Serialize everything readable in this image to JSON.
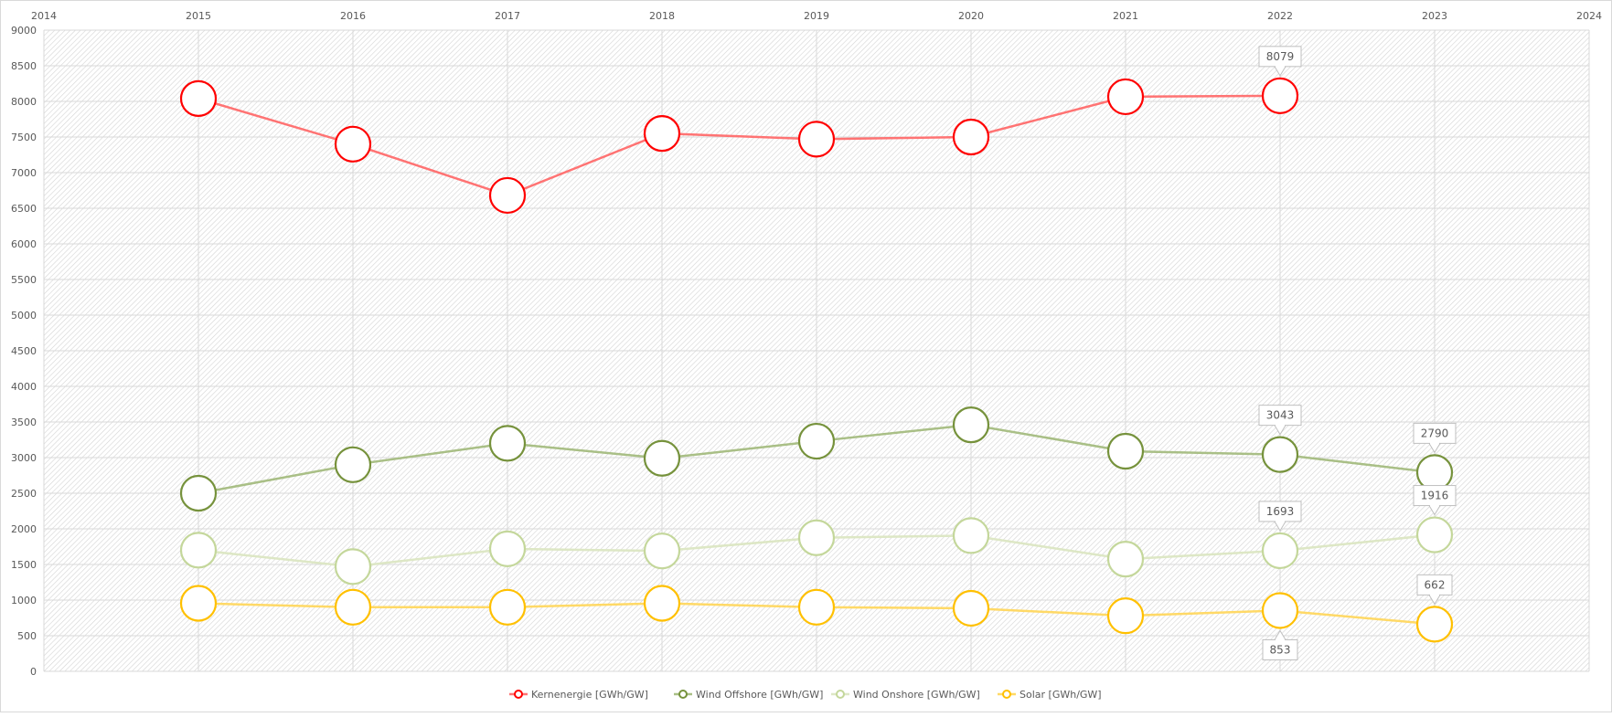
{
  "chart_data": {
    "type": "line",
    "title": "",
    "xlabel": "",
    "ylabel": "",
    "x_ticks": [
      "2014",
      "2015",
      "2016",
      "2017",
      "2018",
      "2019",
      "2020",
      "2021",
      "2022",
      "2023",
      "2024"
    ],
    "xlim": [
      2014,
      2024
    ],
    "ylim": [
      0,
      9000
    ],
    "y_ticks": [
      0,
      500,
      1000,
      1500,
      2000,
      2500,
      3000,
      3500,
      4000,
      4500,
      5000,
      5500,
      6000,
      6500,
      7000,
      7500,
      8000,
      8500,
      9000
    ],
    "grid": true,
    "legend_position": "bottom",
    "series": [
      {
        "name": "Kernenergie [GWh/GW]",
        "color": "#ff0000",
        "line_color": "#ff7373",
        "x": [
          2015,
          2016,
          2017,
          2018,
          2019,
          2020,
          2021,
          2022
        ],
        "values": [
          8040,
          7400,
          6680,
          7550,
          7470,
          7500,
          8065,
          8079
        ],
        "labels": {
          "2022": "8079"
        }
      },
      {
        "name": "Wind Offshore [GWh/GW]",
        "color": "#76923c",
        "line_color": "#a9bf86",
        "x": [
          2015,
          2016,
          2017,
          2018,
          2019,
          2020,
          2021,
          2022,
          2023
        ],
        "values": [
          2500,
          2900,
          3200,
          2990,
          3230,
          3460,
          3090,
          3043,
          2790
        ],
        "labels": {
          "2022": "3043",
          "2023": "2790"
        }
      },
      {
        "name": "Wind Onshore [GWh/GW]",
        "color": "#c4d79b",
        "line_color": "#dde7c5",
        "x": [
          2015,
          2016,
          2017,
          2018,
          2019,
          2020,
          2021,
          2022,
          2023
        ],
        "values": [
          1700,
          1470,
          1720,
          1690,
          1875,
          1905,
          1575,
          1693,
          1916
        ],
        "labels": {
          "2022": "1693",
          "2023": "1916"
        }
      },
      {
        "name": "Solar [GWh/GW]",
        "color": "#ffc000",
        "line_color": "#ffd966",
        "x": [
          2015,
          2016,
          2017,
          2018,
          2019,
          2020,
          2021,
          2022,
          2023
        ],
        "values": [
          955,
          900,
          900,
          955,
          900,
          885,
          780,
          853,
          662
        ],
        "labels": {
          "2022": "853",
          "2023": "662"
        },
        "label_below": [
          "2022"
        ]
      }
    ]
  }
}
